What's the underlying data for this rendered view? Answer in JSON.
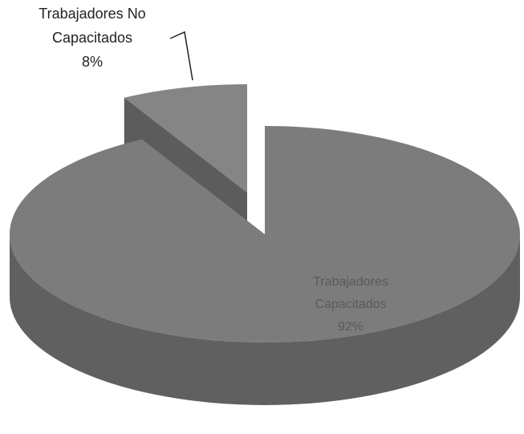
{
  "chart_data": {
    "type": "pie",
    "categories": [
      "Trabajadores Capacitados",
      "Trabajadores No Capacitados"
    ],
    "values": [
      92,
      8
    ],
    "value_labels": [
      "92%",
      "8%"
    ],
    "colors": [
      "#7c7c7c",
      "#858585"
    ]
  }
}
